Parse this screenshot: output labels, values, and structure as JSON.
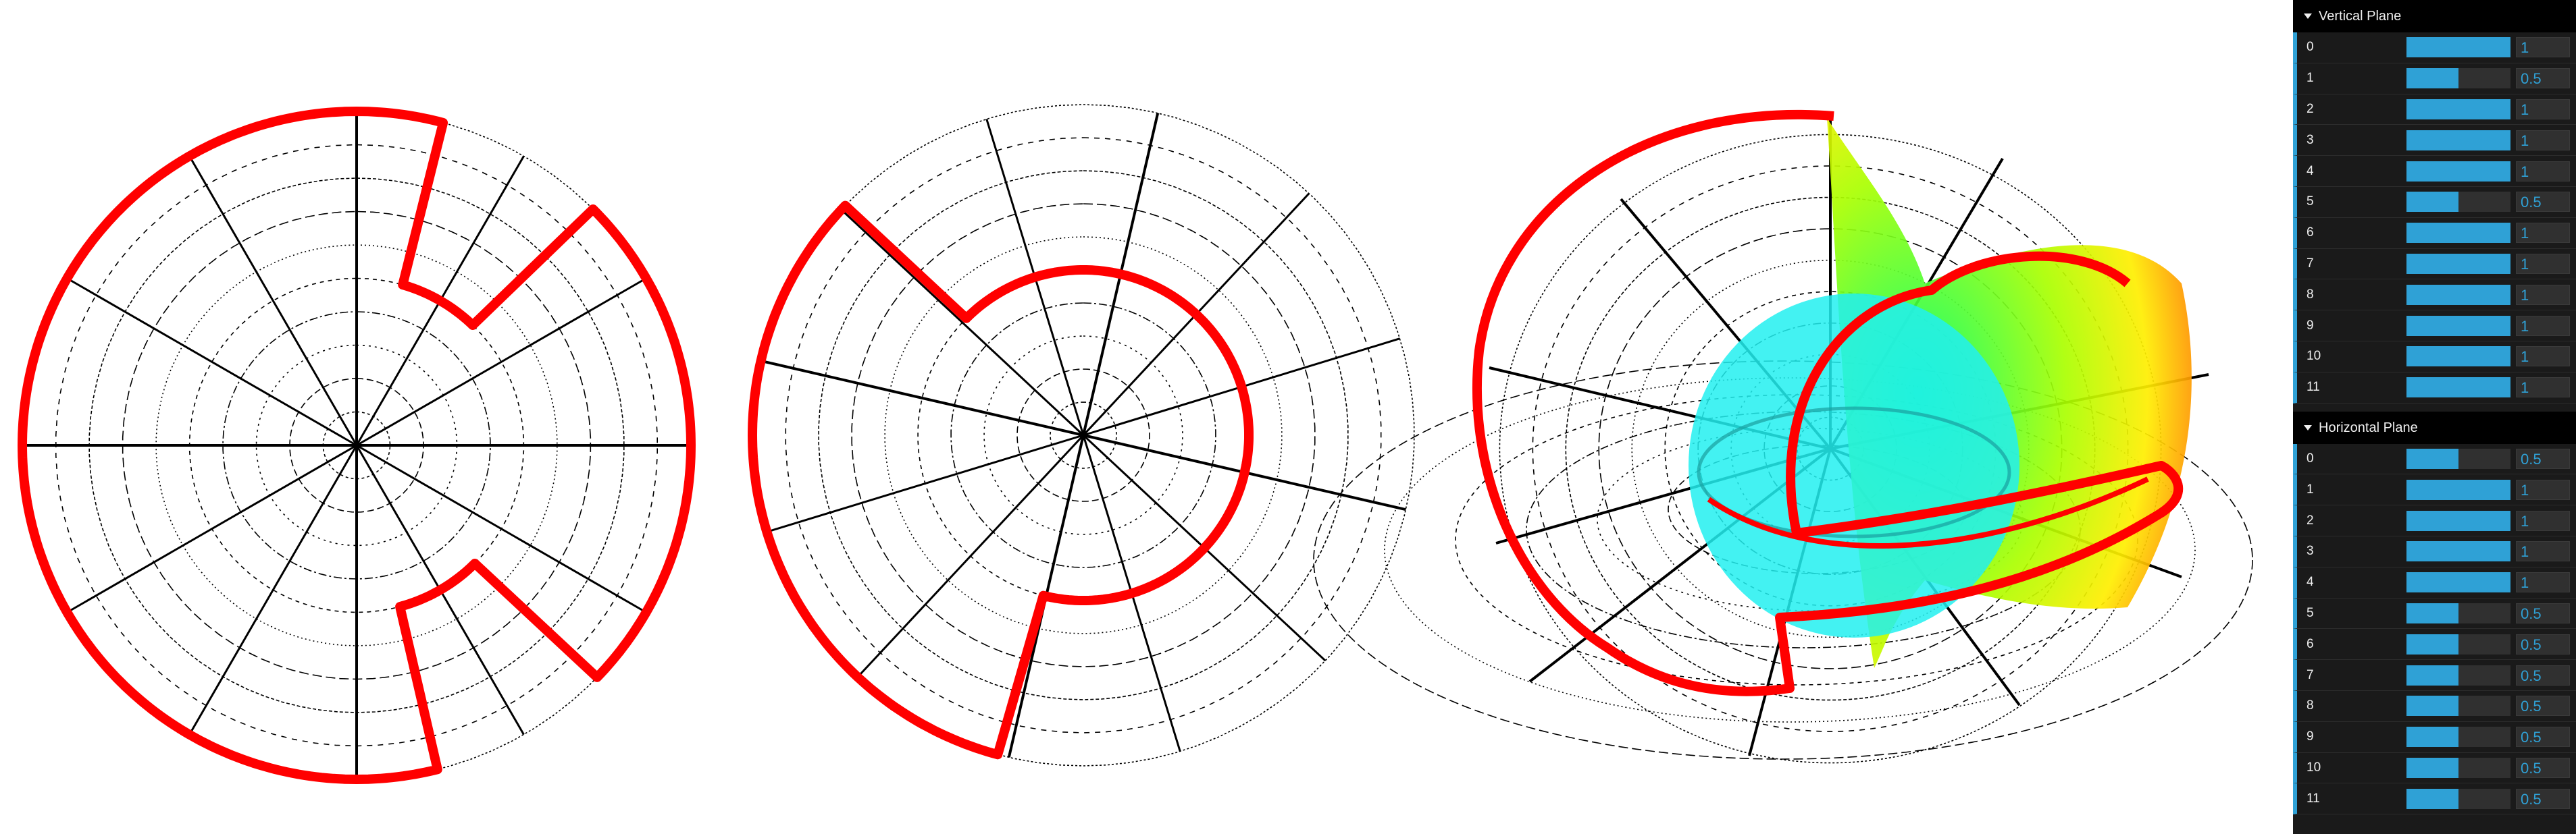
{
  "colors": {
    "curve": "#ff0000",
    "grid": "#000000",
    "panel_bg": "#1a1a1a",
    "accent": "#2fa1d6",
    "slider_bg": "#303030"
  },
  "controls": {
    "vertical": {
      "title": "Vertical Plane",
      "items": [
        {
          "label": "0",
          "value": "1",
          "level": 1
        },
        {
          "label": "1",
          "value": "0.5",
          "level": 0.5
        },
        {
          "label": "2",
          "value": "1",
          "level": 1
        },
        {
          "label": "3",
          "value": "1",
          "level": 1
        },
        {
          "label": "4",
          "value": "1",
          "level": 1
        },
        {
          "label": "5",
          "value": "0.5",
          "level": 0.5
        },
        {
          "label": "6",
          "value": "1",
          "level": 1
        },
        {
          "label": "7",
          "value": "1",
          "level": 1
        },
        {
          "label": "8",
          "value": "1",
          "level": 1
        },
        {
          "label": "9",
          "value": "1",
          "level": 1
        },
        {
          "label": "10",
          "value": "1",
          "level": 1
        },
        {
          "label": "11",
          "value": "1",
          "level": 1
        }
      ]
    },
    "horizontal": {
      "title": "Horizontal Plane",
      "items": [
        {
          "label": "0",
          "value": "0.5",
          "level": 0.5
        },
        {
          "label": "1",
          "value": "1",
          "level": 1
        },
        {
          "label": "2",
          "value": "1",
          "level": 1
        },
        {
          "label": "3",
          "value": "1",
          "level": 1
        },
        {
          "label": "4",
          "value": "1",
          "level": 1
        },
        {
          "label": "5",
          "value": "0.5",
          "level": 0.5
        },
        {
          "label": "6",
          "value": "0.5",
          "level": 0.5
        },
        {
          "label": "7",
          "value": "0.5",
          "level": 0.5
        },
        {
          "label": "8",
          "value": "0.5",
          "level": 0.5
        },
        {
          "label": "9",
          "value": "0.5",
          "level": 0.5
        },
        {
          "label": "10",
          "value": "0.5",
          "level": 0.5
        },
        {
          "label": "11",
          "value": "0.5",
          "level": 0.5
        }
      ]
    }
  }
}
